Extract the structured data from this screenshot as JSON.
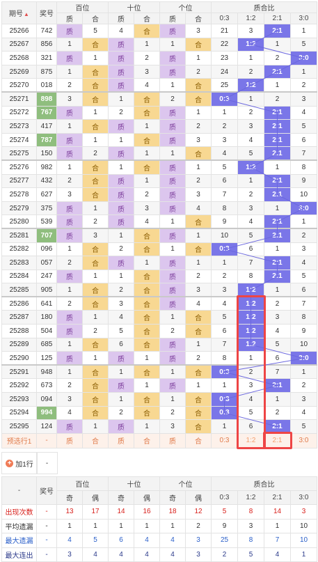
{
  "header": {
    "issue": "期号",
    "number": "奖号",
    "hundreds": "百位",
    "tens": "十位",
    "units": "个位",
    "ratio": "质合比",
    "sub_zhi": "质",
    "sub_he": "合",
    "ratio_cols": [
      "0:3",
      "1:2",
      "2:1",
      "3:0"
    ]
  },
  "rows": [
    {
      "issue": "25266",
      "num": "742",
      "h": [
        "质",
        "5"
      ],
      "t": [
        "4",
        "合"
      ],
      "u": [
        "质",
        "3"
      ],
      "r": [
        "21",
        "3",
        "2:1",
        "1"
      ],
      "rb": 2
    },
    {
      "issue": "25267",
      "num": "856",
      "h": [
        "1",
        "合"
      ],
      "t": [
        "质",
        "1"
      ],
      "u": [
        "1",
        "合"
      ],
      "r": [
        "22",
        "1:2",
        "1",
        "5"
      ],
      "rb": 1
    },
    {
      "issue": "25268",
      "num": "321",
      "h": [
        "质",
        "1"
      ],
      "t": [
        "质",
        "2"
      ],
      "u": [
        "质",
        "1"
      ],
      "r": [
        "23",
        "1",
        "2",
        "3:0"
      ],
      "rb": 3
    },
    {
      "issue": "25269",
      "num": "875",
      "h": [
        "1",
        "合"
      ],
      "t": [
        "质",
        "3"
      ],
      "u": [
        "质",
        "2"
      ],
      "r": [
        "24",
        "2",
        "2:1",
        "1"
      ],
      "rb": 2
    },
    {
      "issue": "25270",
      "num": "018",
      "h": [
        "2",
        "合"
      ],
      "t": [
        "质",
        "4"
      ],
      "u": [
        "1",
        "合"
      ],
      "r": [
        "25",
        "1:2",
        "1",
        "2"
      ],
      "rb": 1
    },
    {
      "issue": "25271",
      "num": "898",
      "h": [
        "3",
        "合"
      ],
      "t": [
        "1",
        "合"
      ],
      "u": [
        "2",
        "合"
      ],
      "r": [
        "0:3",
        "1",
        "2",
        "3"
      ],
      "rb": 0,
      "green": true
    },
    {
      "issue": "25272",
      "num": "767",
      "h": [
        "质",
        "1"
      ],
      "t": [
        "2",
        "合"
      ],
      "u": [
        "质",
        "1"
      ],
      "r": [
        "1",
        "2",
        "2:1",
        "4"
      ],
      "rb": 2,
      "green": true
    },
    {
      "issue": "25273",
      "num": "417",
      "h": [
        "1",
        "合"
      ],
      "t": [
        "质",
        "1"
      ],
      "u": [
        "质",
        "2"
      ],
      "r": [
        "2",
        "3",
        "2:1",
        "5"
      ],
      "rb": 2
    },
    {
      "issue": "25274",
      "num": "787",
      "h": [
        "质",
        "1"
      ],
      "t": [
        "1",
        "合"
      ],
      "u": [
        "质",
        "3"
      ],
      "r": [
        "3",
        "4",
        "2:1",
        "6"
      ],
      "rb": 2,
      "green": true
    },
    {
      "issue": "25275",
      "num": "150",
      "h": [
        "质",
        "2"
      ],
      "t": [
        "质",
        "1"
      ],
      "u": [
        "1",
        "合"
      ],
      "r": [
        "4",
        "5",
        "2:1",
        "7"
      ],
      "rb": 2
    },
    {
      "issue": "25276",
      "num": "982",
      "h": [
        "1",
        "合"
      ],
      "t": [
        "1",
        "合"
      ],
      "u": [
        "质",
        "1"
      ],
      "r": [
        "5",
        "1:2",
        "1",
        "8"
      ],
      "rb": 1
    },
    {
      "issue": "25277",
      "num": "432",
      "h": [
        "2",
        "合"
      ],
      "t": [
        "质",
        "1"
      ],
      "u": [
        "质",
        "2"
      ],
      "r": [
        "6",
        "1",
        "2:1",
        "9"
      ],
      "rb": 2
    },
    {
      "issue": "25278",
      "num": "627",
      "h": [
        "3",
        "合"
      ],
      "t": [
        "质",
        "2"
      ],
      "u": [
        "质",
        "3"
      ],
      "r": [
        "7",
        "2",
        "2:1",
        "10"
      ],
      "rb": 2
    },
    {
      "issue": "25279",
      "num": "375",
      "h": [
        "质",
        "1"
      ],
      "t": [
        "质",
        "3"
      ],
      "u": [
        "质",
        "4"
      ],
      "r": [
        "8",
        "3",
        "1",
        "3:0"
      ],
      "rb": 3
    },
    {
      "issue": "25280",
      "num": "539",
      "h": [
        "质",
        "2"
      ],
      "t": [
        "质",
        "4"
      ],
      "u": [
        "1",
        "合"
      ],
      "r": [
        "9",
        "4",
        "2:1",
        "1"
      ],
      "rb": 2
    },
    {
      "issue": "25281",
      "num": "707",
      "h": [
        "质",
        "3"
      ],
      "t": [
        "1",
        "合"
      ],
      "u": [
        "质",
        "1"
      ],
      "r": [
        "10",
        "5",
        "2:1",
        "2"
      ],
      "rb": 2,
      "green": true
    },
    {
      "issue": "25282",
      "num": "096",
      "h": [
        "1",
        "合"
      ],
      "t": [
        "2",
        "合"
      ],
      "u": [
        "1",
        "合"
      ],
      "r": [
        "0:3",
        "6",
        "1",
        "3"
      ],
      "rb": 0
    },
    {
      "issue": "25283",
      "num": "057",
      "h": [
        "2",
        "合"
      ],
      "t": [
        "质",
        "1"
      ],
      "u": [
        "质",
        "1"
      ],
      "r": [
        "1",
        "7",
        "2:1",
        "4"
      ],
      "rb": 2
    },
    {
      "issue": "25284",
      "num": "247",
      "h": [
        "质",
        "1"
      ],
      "t": [
        "1",
        "合"
      ],
      "u": [
        "质",
        "2"
      ],
      "r": [
        "2",
        "8",
        "2:1",
        "5"
      ],
      "rb": 2
    },
    {
      "issue": "25285",
      "num": "905",
      "h": [
        "1",
        "合"
      ],
      "t": [
        "2",
        "合"
      ],
      "u": [
        "质",
        "3"
      ],
      "r": [
        "3",
        "1:2",
        "1",
        "6"
      ],
      "rb": 1
    },
    {
      "issue": "25286",
      "num": "641",
      "h": [
        "2",
        "合"
      ],
      "t": [
        "3",
        "合"
      ],
      "u": [
        "质",
        "4"
      ],
      "r": [
        "4",
        "1:2",
        "2",
        "7"
      ],
      "rb": 1
    },
    {
      "issue": "25287",
      "num": "180",
      "h": [
        "质",
        "1"
      ],
      "t": [
        "4",
        "合"
      ],
      "u": [
        "1",
        "合"
      ],
      "r": [
        "5",
        "1:2",
        "3",
        "8"
      ],
      "rb": 1
    },
    {
      "issue": "25288",
      "num": "504",
      "h": [
        "质",
        "2"
      ],
      "t": [
        "5",
        "合"
      ],
      "u": [
        "2",
        "合"
      ],
      "r": [
        "6",
        "1:2",
        "4",
        "9"
      ],
      "rb": 1
    },
    {
      "issue": "25289",
      "num": "685",
      "h": [
        "1",
        "合"
      ],
      "t": [
        "6",
        "合"
      ],
      "u": [
        "质",
        "1"
      ],
      "r": [
        "7",
        "1:2",
        "5",
        "10"
      ],
      "rb": 1
    },
    {
      "issue": "25290",
      "num": "125",
      "h": [
        "质",
        "1"
      ],
      "t": [
        "质",
        "1"
      ],
      "u": [
        "质",
        "2"
      ],
      "r": [
        "8",
        "1",
        "6",
        "3:0"
      ],
      "rb": 3
    },
    {
      "issue": "25291",
      "num": "948",
      "h": [
        "1",
        "合"
      ],
      "t": [
        "1",
        "合"
      ],
      "u": [
        "1",
        "合"
      ],
      "r": [
        "0:3",
        "2",
        "7",
        "1"
      ],
      "rb": 0
    },
    {
      "issue": "25292",
      "num": "673",
      "h": [
        "2",
        "合"
      ],
      "t": [
        "质",
        "1"
      ],
      "u": [
        "质",
        "1"
      ],
      "r": [
        "1",
        "3",
        "2:1",
        "2"
      ],
      "rb": 2
    },
    {
      "issue": "25293",
      "num": "094",
      "h": [
        "3",
        "合"
      ],
      "t": [
        "1",
        "合"
      ],
      "u": [
        "1",
        "合"
      ],
      "r": [
        "0:3",
        "4",
        "1",
        "3"
      ],
      "rb": 0
    },
    {
      "issue": "25294",
      "num": "994",
      "h": [
        "4",
        "合"
      ],
      "t": [
        "2",
        "合"
      ],
      "u": [
        "2",
        "合"
      ],
      "r": [
        "0:3",
        "5",
        "2",
        "4"
      ],
      "rb": 0,
      "green": true
    },
    {
      "issue": "25295",
      "num": "124",
      "h": [
        "质",
        "1"
      ],
      "t": [
        "质",
        "1"
      ],
      "u": [
        "3",
        "合"
      ],
      "r": [
        "1",
        "6",
        "2:1",
        "5"
      ],
      "rb": 2
    }
  ],
  "predict": {
    "label": "预选行1",
    "dash": "-",
    "cells": [
      "质",
      "合",
      "质",
      "合",
      "质",
      "合"
    ],
    "ratio": [
      "0:3",
      "1:2",
      "2:1",
      "3:0"
    ]
  },
  "add_row": {
    "label": "加1行",
    "dash": "-"
  },
  "stats": {
    "corner": "-",
    "number": "奖号",
    "hundreds": "百位",
    "tens": "十位",
    "units": "个位",
    "ratio": "质合比",
    "sub": [
      "奇",
      "偶",
      "奇",
      "偶",
      "奇",
      "偶",
      "0:3",
      "1:2",
      "2:1",
      "3:0"
    ],
    "rows": [
      {
        "label": "出现次数",
        "dash": "-",
        "vals": [
          "13",
          "17",
          "14",
          "16",
          "18",
          "12",
          "5",
          "8",
          "14",
          "3"
        ],
        "cls": "s-red"
      },
      {
        "label": "平均遗漏",
        "dash": "-",
        "vals": [
          "1",
          "1",
          "1",
          "1",
          "1",
          "2",
          "9",
          "3",
          "1",
          "10"
        ],
        "cls": "s-dark"
      },
      {
        "label": "最大遗漏",
        "dash": "-",
        "vals": [
          "4",
          "5",
          "6",
          "4",
          "4",
          "3",
          "25",
          "8",
          "7",
          "10"
        ],
        "cls": "s-blue"
      },
      {
        "label": "最大连出",
        "dash": "-",
        "vals": [
          "3",
          "4",
          "4",
          "4",
          "4",
          "3",
          "2",
          "5",
          "4",
          "1"
        ],
        "cls": "s-navy"
      }
    ]
  },
  "colors": {
    "ratio_blue": "#7a76e8",
    "zhi_purple": "#dcc6ee",
    "he_orange": "#f8d892",
    "green_num": "#8fbe7e",
    "red_box": "#ee4545"
  }
}
